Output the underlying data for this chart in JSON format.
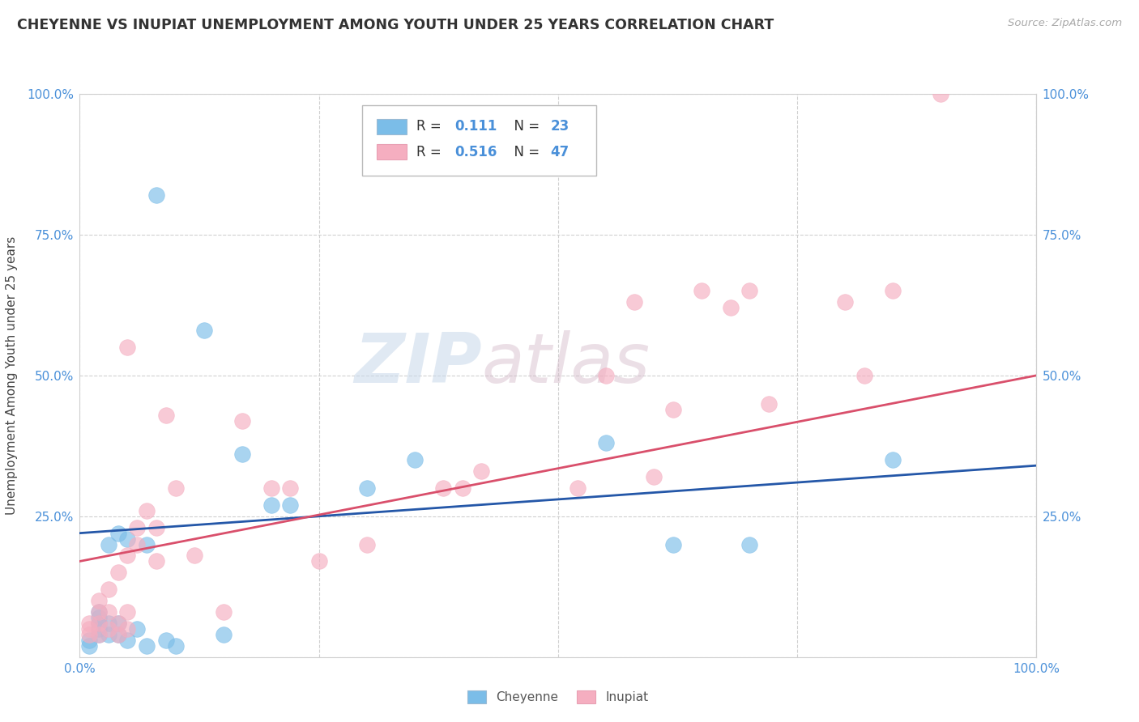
{
  "title": "CHEYENNE VS INUPIAT UNEMPLOYMENT AMONG YOUTH UNDER 25 YEARS CORRELATION CHART",
  "source": "Source: ZipAtlas.com",
  "ylabel": "Unemployment Among Youth under 25 years",
  "watermark_zip": "ZIP",
  "watermark_atlas": "atlas",
  "cheyenne_color": "#7bbde8",
  "inupiat_color": "#f5aec0",
  "cheyenne_line_color": "#2457a8",
  "inupiat_line_color": "#d94f6b",
  "xlim": [
    0.0,
    1.0
  ],
  "ylim": [
    0.0,
    1.0
  ],
  "cheyenne_x": [
    0.01,
    0.01,
    0.02,
    0.02,
    0.02,
    0.02,
    0.02,
    0.03,
    0.03,
    0.03,
    0.04,
    0.04,
    0.04,
    0.05,
    0.05,
    0.06,
    0.07,
    0.07,
    0.08,
    0.09,
    0.1,
    0.13,
    0.15,
    0.17,
    0.2,
    0.22,
    0.3,
    0.35,
    0.55,
    0.62,
    0.7,
    0.85
  ],
  "cheyenne_y": [
    0.02,
    0.03,
    0.04,
    0.05,
    0.06,
    0.07,
    0.08,
    0.04,
    0.06,
    0.2,
    0.04,
    0.06,
    0.22,
    0.03,
    0.21,
    0.05,
    0.02,
    0.2,
    0.82,
    0.03,
    0.02,
    0.58,
    0.04,
    0.36,
    0.27,
    0.27,
    0.3,
    0.35,
    0.38,
    0.2,
    0.2,
    0.35
  ],
  "inupiat_x": [
    0.01,
    0.01,
    0.01,
    0.02,
    0.02,
    0.02,
    0.02,
    0.03,
    0.03,
    0.03,
    0.04,
    0.04,
    0.04,
    0.05,
    0.05,
    0.05,
    0.05,
    0.06,
    0.06,
    0.07,
    0.08,
    0.08,
    0.09,
    0.1,
    0.12,
    0.15,
    0.17,
    0.2,
    0.22,
    0.25,
    0.3,
    0.38,
    0.4,
    0.42,
    0.52,
    0.55,
    0.58,
    0.6,
    0.62,
    0.65,
    0.68,
    0.7,
    0.72,
    0.8,
    0.82,
    0.85,
    0.9
  ],
  "inupiat_y": [
    0.04,
    0.05,
    0.06,
    0.04,
    0.06,
    0.08,
    0.1,
    0.05,
    0.08,
    0.12,
    0.04,
    0.06,
    0.15,
    0.05,
    0.08,
    0.18,
    0.55,
    0.2,
    0.23,
    0.26,
    0.17,
    0.23,
    0.43,
    0.3,
    0.18,
    0.08,
    0.42,
    0.3,
    0.3,
    0.17,
    0.2,
    0.3,
    0.3,
    0.33,
    0.3,
    0.5,
    0.63,
    0.32,
    0.44,
    0.65,
    0.62,
    0.65,
    0.45,
    0.63,
    0.5,
    0.65,
    1.0
  ],
  "cheyenne_line_x0": 0.0,
  "cheyenne_line_y0": 0.22,
  "cheyenne_line_x1": 1.0,
  "cheyenne_line_y1": 0.34,
  "inupiat_line_x0": 0.0,
  "inupiat_line_y0": 0.17,
  "inupiat_line_x1": 1.0,
  "inupiat_line_y1": 0.5
}
